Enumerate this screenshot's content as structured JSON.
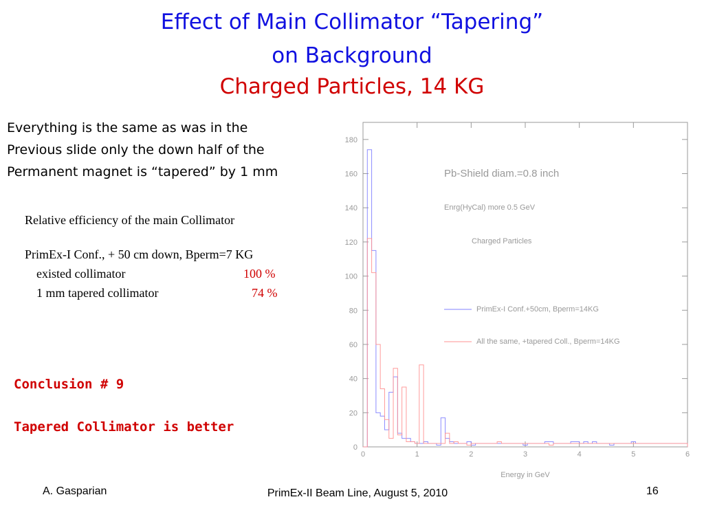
{
  "slide": {
    "title_line1": "Effect of Main Collimator “Tapering”",
    "title_line2": "on Background",
    "title_line3": "Charged Particles,   14 KG",
    "intro_lines": [
      "Everything is the same as was in the",
      "Previous slide only the down half of the",
      "Permanent magnet is “tapered” by 1 mm"
    ],
    "efficiency": {
      "heading": "Relative efficiency of the main Collimator",
      "configuration": "PrimEx-I Conf., + 50 cm down, Bperm=7 KG",
      "rows": [
        {
          "name": "existed collimator",
          "value": "100 %"
        },
        {
          "name": "1 mm tapered collimator",
          "value": "74 %"
        }
      ]
    },
    "conclusion_title": "Conclusion # 9",
    "conclusion_text": "Tapered Collimator is better",
    "footer": {
      "author": "A. Gasparian",
      "title": "PrimEx-II Beam Line, August 5, 2010",
      "page": "16"
    },
    "colors": {
      "title_blue": "#1010e0",
      "title_red": "#d00000",
      "series_blue": "#8080ff",
      "series_pink": "#ff9090"
    }
  },
  "chart_data": {
    "type": "line",
    "style": "histogram",
    "annotations": [
      "Pb-Shield diam.=0.8 inch",
      "Enrg(HyCal) more 0.5 GeV",
      "Charged Particles"
    ],
    "xlabel": "Energy in GeV",
    "ylabel": "",
    "xlim": [
      0,
      6
    ],
    "ylim": [
      0,
      190
    ],
    "x_ticks": [
      0,
      1,
      2,
      3,
      4,
      5,
      6
    ],
    "y_ticks": [
      0,
      20,
      40,
      60,
      80,
      100,
      120,
      140,
      160,
      180
    ],
    "bin_width": 0.08,
    "grid": false,
    "legend_position": "middle-right",
    "series": [
      {
        "name": "PrimEx-I Conf.+50cm, Bperm=14KG",
        "color": "#8080ff",
        "values": [
          0,
          174,
          115,
          20,
          18,
          10,
          32,
          41,
          8,
          5,
          5,
          3,
          2,
          2,
          3,
          2,
          2,
          1,
          17,
          5,
          3,
          2,
          2,
          2,
          3,
          1,
          2,
          2,
          2,
          2,
          2,
          2,
          2,
          2,
          2,
          2,
          2,
          1,
          2,
          2,
          2,
          2,
          3,
          3,
          2,
          2,
          2,
          2,
          3,
          3,
          2,
          3,
          2,
          3,
          2,
          2,
          2,
          1,
          2,
          2,
          2,
          2,
          3,
          2,
          2,
          2,
          2,
          2,
          2,
          2,
          2,
          2,
          2,
          2,
          2
        ]
      },
      {
        "name": "All the same, +tapered Coll., Bperm=14KG",
        "color": "#ff9090",
        "values": [
          0,
          122,
          102,
          60,
          34,
          16,
          5,
          46,
          7,
          35,
          3,
          3,
          2,
          48,
          2,
          2,
          2,
          2,
          2,
          8,
          2,
          3,
          2,
          2,
          1,
          2,
          2,
          2,
          2,
          2,
          2,
          3,
          2,
          2,
          2,
          2,
          2,
          2,
          2,
          2,
          2,
          2,
          2,
          1,
          2,
          2,
          2,
          2,
          2,
          2,
          2,
          2,
          2,
          2,
          2,
          2,
          2,
          2,
          2,
          2,
          2,
          2,
          2,
          2,
          2,
          2,
          2,
          2,
          2,
          2,
          2,
          2,
          2,
          2,
          2
        ]
      }
    ]
  }
}
